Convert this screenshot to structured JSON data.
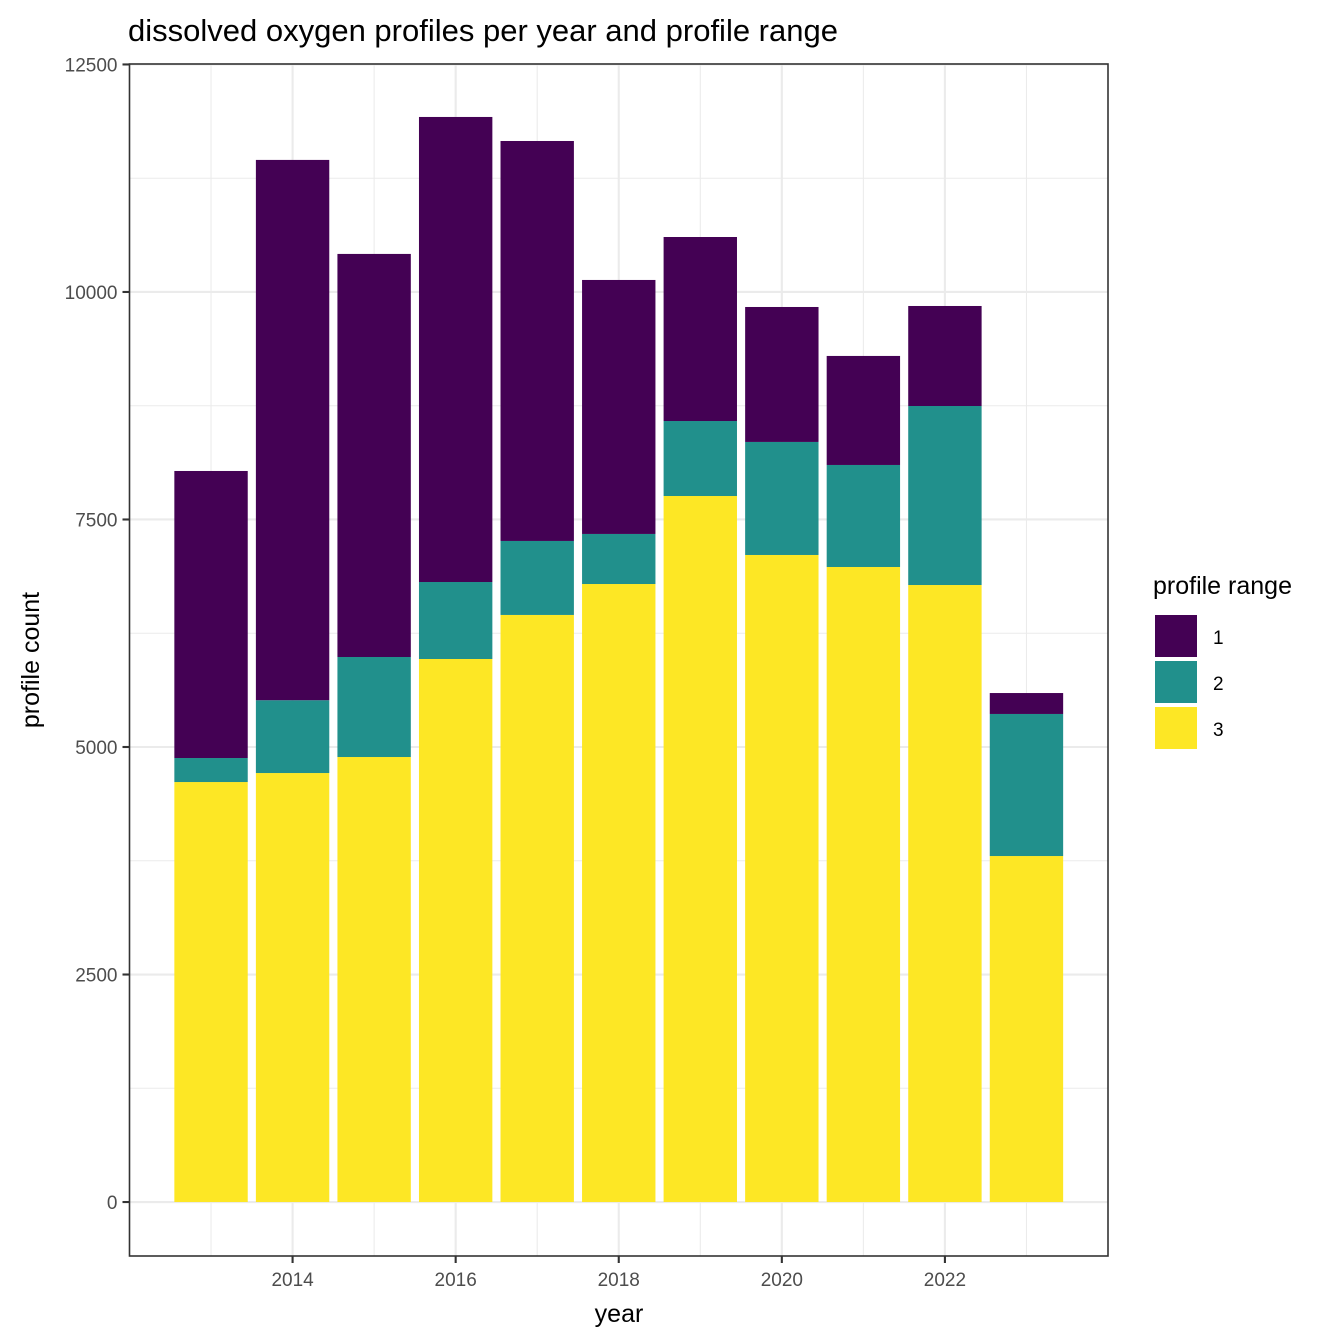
{
  "chart_data": {
    "type": "bar",
    "stacked": true,
    "title": "dissolved oxygen profiles per year and profile range",
    "xlabel": "year",
    "ylabel": "profile count",
    "categories": [
      2013,
      2014,
      2015,
      2016,
      2017,
      2018,
      2019,
      2020,
      2021,
      2022,
      2023
    ],
    "series": [
      {
        "name": "3",
        "color": "#FDE725",
        "values": [
          4615,
          4714,
          4890,
          5967,
          6451,
          6791,
          7758,
          7110,
          6978,
          6780,
          3802
        ]
      },
      {
        "name": "2",
        "color": "#21908C",
        "values": [
          264,
          800,
          1099,
          846,
          813,
          550,
          824,
          1242,
          1121,
          1967,
          1561
        ]
      },
      {
        "name": "1",
        "color": "#440154",
        "values": [
          3154,
          5937,
          4429,
          5110,
          4395,
          2791,
          2022,
          1483,
          1198,
          1099,
          230
        ]
      }
    ],
    "totals": [
      8033,
      11451,
      10418,
      11923,
      11659,
      10132,
      10604,
      9835,
      9297,
      9846,
      5593
    ],
    "ylim": [
      -593,
      12505
    ],
    "xlim": [
      2012.0,
      2024.0
    ],
    "y_ticks": [
      0,
      2500,
      5000,
      7500,
      10000,
      12500
    ],
    "y_tick_labels": [
      "0",
      "2500",
      "5000",
      "7500",
      "10000",
      "12500"
    ],
    "x_ticks": [
      2014,
      2016,
      2018,
      2020,
      2022
    ],
    "x_tick_labels": [
      "2014",
      "2016",
      "2018",
      "2020",
      "2022"
    ],
    "x_minor_ticks": [
      2013,
      2015,
      2017,
      2019,
      2021,
      2023
    ],
    "y_minor_ticks": [
      1250,
      3750,
      6250,
      8750,
      11250
    ],
    "grid": true,
    "legend": {
      "title": "profile range",
      "placement": "right",
      "entries": [
        {
          "label": "1",
          "color": "#440154"
        },
        {
          "label": "2",
          "color": "#21908C"
        },
        {
          "label": "3",
          "color": "#FDE725"
        }
      ]
    }
  }
}
